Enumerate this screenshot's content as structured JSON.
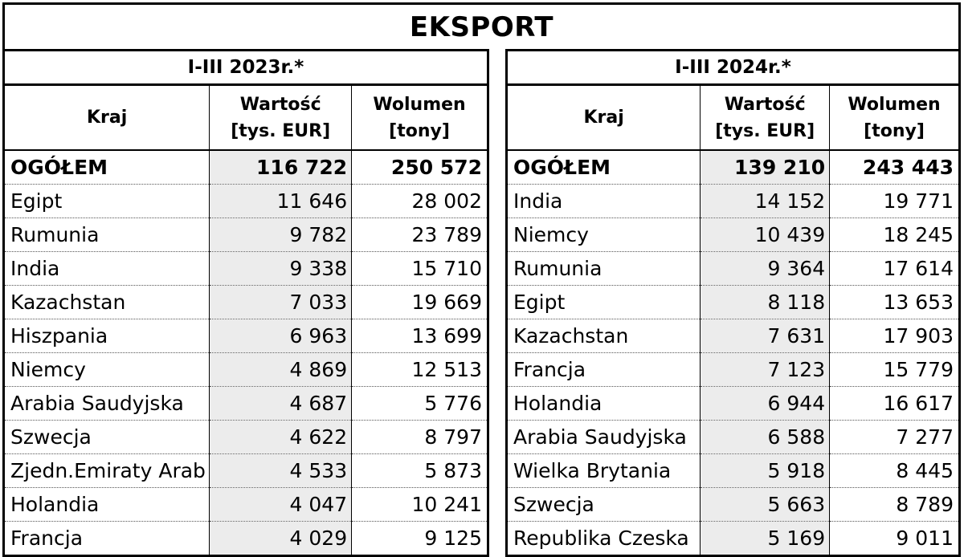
{
  "title": "EKSPORT",
  "left": {
    "period": "I-III 2023r.*",
    "headers": {
      "kraj": "Kraj",
      "wartosc_1": "Wartość",
      "wartosc_2": "[tys. EUR]",
      "wolumen_1": "Wolumen",
      "wolumen_2": "[tony]"
    },
    "rows": [
      {
        "kraj": "OGÓŁEM",
        "wartosc": "116 722",
        "wolumen": "250 572"
      },
      {
        "kraj": "Egipt",
        "wartosc": "11 646",
        "wolumen": "28 002"
      },
      {
        "kraj": "Rumunia",
        "wartosc": "9 782",
        "wolumen": "23 789"
      },
      {
        "kraj": "India",
        "wartosc": "9 338",
        "wolumen": "15 710"
      },
      {
        "kraj": "Kazachstan",
        "wartosc": "7 033",
        "wolumen": "19 669"
      },
      {
        "kraj": "Hiszpania",
        "wartosc": "6 963",
        "wolumen": "13 699"
      },
      {
        "kraj": "Niemcy",
        "wartosc": "4 869",
        "wolumen": "12 513"
      },
      {
        "kraj": "Arabia Saudyjska",
        "wartosc": "4 687",
        "wolumen": "5 776"
      },
      {
        "kraj": "Szwecja",
        "wartosc": "4 622",
        "wolumen": "8 797"
      },
      {
        "kraj": "Zjedn.Emiraty Arab",
        "wartosc": "4 533",
        "wolumen": "5 873"
      },
      {
        "kraj": "Holandia",
        "wartosc": "4 047",
        "wolumen": "10 241"
      },
      {
        "kraj": "Francja",
        "wartosc": "4 029",
        "wolumen": "9 125"
      }
    ]
  },
  "right": {
    "period": "I-III 2024r.*",
    "headers": {
      "kraj": "Kraj",
      "wartosc_1": "Wartość",
      "wartosc_2": "[tys. EUR]",
      "wolumen_1": "Wolumen",
      "wolumen_2": "[tony]"
    },
    "rows": [
      {
        "kraj": "OGÓŁEM",
        "wartosc": "139 210",
        "wolumen": "243 443"
      },
      {
        "kraj": "India",
        "wartosc": "14 152",
        "wolumen": "19 771"
      },
      {
        "kraj": "Niemcy",
        "wartosc": "10 439",
        "wolumen": "18 245"
      },
      {
        "kraj": "Rumunia",
        "wartosc": "9 364",
        "wolumen": "17 614"
      },
      {
        "kraj": "Egipt",
        "wartosc": "8 118",
        "wolumen": "13 653"
      },
      {
        "kraj": "Kazachstan",
        "wartosc": "7 631",
        "wolumen": "17 903"
      },
      {
        "kraj": "Francja",
        "wartosc": "7 123",
        "wolumen": "15 779"
      },
      {
        "kraj": "Holandia",
        "wartosc": "6 944",
        "wolumen": "16 617"
      },
      {
        "kraj": "Arabia Saudyjska",
        "wartosc": "6 588",
        "wolumen": "7 277"
      },
      {
        "kraj": "Wielka Brytania",
        "wartosc": "5 918",
        "wolumen": "8 445"
      },
      {
        "kraj": "Szwecja",
        "wartosc": "5 663",
        "wolumen": "8 789"
      },
      {
        "kraj": "Republika Czeska",
        "wartosc": "5 169",
        "wolumen": "9 011"
      }
    ]
  }
}
